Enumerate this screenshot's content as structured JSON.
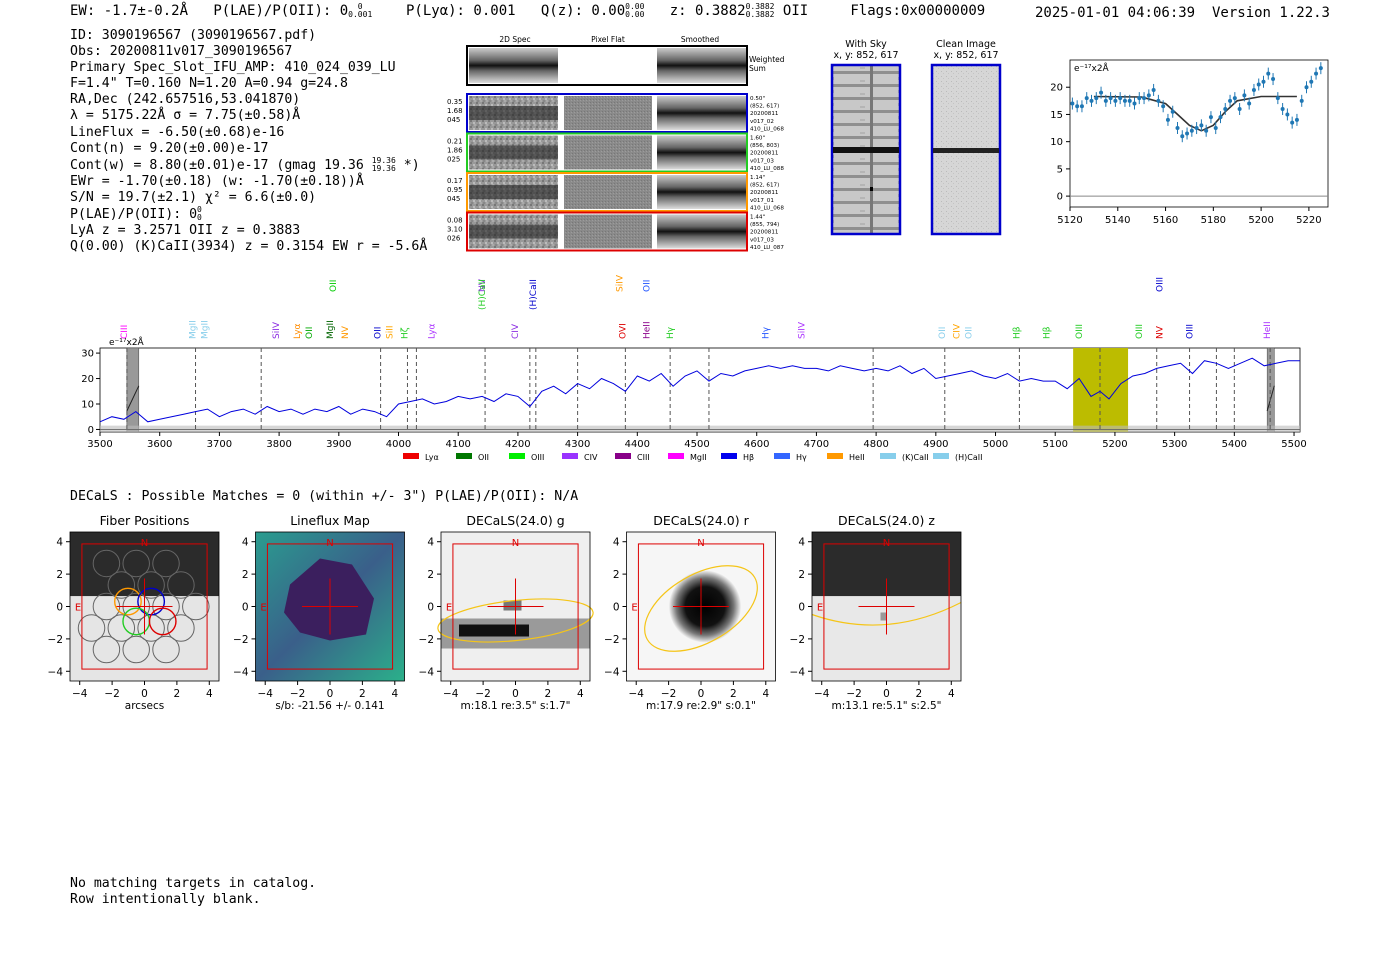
{
  "header": {
    "ew": "EW: -1.7±-0.2Å",
    "plae_label": "P(LAE)/P(OII): 0",
    "plae_sup": "0",
    "plae_sub": "0.001",
    "plya": "P(Lyα): 0.001",
    "qz_label": "Q(z): 0.00",
    "qz_sup": "0.00",
    "qz_sub": "0.00",
    "z_label": "z: 0.3882",
    "z_sup": "0.3882",
    "z_sub": "0.3882",
    "z_line": "OII",
    "flags": "Flags:0x00000009",
    "timestamp": "2025-01-01 04:06:39",
    "version": "Version 1.22.3"
  },
  "info": {
    "lines": [
      "ID: 3090196567 (3090196567.pdf)",
      "Obs: 20200811v017_3090196567",
      "Primary Spec_Slot_IFU_AMP: 410_024_039_LU",
      "F=1.4\"  T=0.160  N=1.20  A=0.94  g=24.8",
      "RA,Dec (242.657516,53.041870)",
      "λ = 5175.22Å  σ = 7.75(±0.58)Å",
      "LineFlux = -6.50(±0.68)e-16",
      "Cont(n) = 9.20(±0.00)e-17"
    ],
    "contw": "Cont(w) = 8.80(±0.01)e-17 (gmag 19.36",
    "contw_sup": "19.36",
    "contw_sub": "19.36",
    "contw_end": "*)",
    "lines2": [
      "EWr = -1.70(±0.18) (w: -1.70(±0.18))Å",
      "S/N = 19.7(±2.1)  χ² = 6.6(±0.0)"
    ],
    "plae2": "P(LAE)/P(OII): 0",
    "plae2_sup": "0",
    "plae2_sub": "0",
    "lines3": [
      "LyA z = 3.2571  OII z = 0.3883",
      "Q(0.00) (K)CaII(3934) z = 0.3154  EW r = -5.6Å"
    ]
  },
  "spec2d": {
    "col_headers": [
      "2D Spec",
      "Pixel Flat",
      "Smoothed"
    ],
    "weighted_label": [
      "Weighted",
      "Sum"
    ],
    "rows": [
      {
        "left": [
          "0.35",
          "1.68",
          "045"
        ],
        "right": [
          "0.50\"",
          "(852, 617)",
          "20200811",
          "v017_02",
          "410_LU_068"
        ],
        "color": "#0000cc"
      },
      {
        "left": [
          "0.21",
          "1.86",
          "025"
        ],
        "right": [
          "1.60\"",
          "(856, 803)",
          "20200811",
          "v017_03",
          "410_LU_088"
        ],
        "color": "#22cc22"
      },
      {
        "left": [
          "0.17",
          "0.95",
          "045"
        ],
        "right": [
          "1.14\"",
          "(852, 617)",
          "20200811",
          "v017_01",
          "410_LU_068"
        ],
        "color": "#ff9900"
      },
      {
        "left": [
          "0.08",
          "3.10",
          "026"
        ],
        "right": [
          "1.44\"",
          "(855, 794)",
          "20200811",
          "v017_03",
          "410_LU_087"
        ],
        "color": "#dd0000"
      }
    ]
  },
  "cutouts": {
    "with_sky": [
      "With Sky",
      "x, y: 852, 617"
    ],
    "clean": [
      "Clean Image",
      "x, y: 852, 617"
    ]
  },
  "zoom_chart": {
    "type": "scatter",
    "ylabel": "e⁻¹⁷x2Å",
    "xlim": [
      5120,
      5228
    ],
    "ylim": [
      -2,
      25
    ],
    "xticks": [
      5120,
      5140,
      5160,
      5180,
      5200,
      5220
    ],
    "yticks": [
      0,
      5,
      10,
      15,
      20
    ],
    "points_x": [
      5121,
      5123,
      5125,
      5127,
      5129,
      5131,
      5133,
      5135,
      5137,
      5139,
      5141,
      5143,
      5145,
      5147,
      5149,
      5151,
      5153,
      5155,
      5157,
      5159,
      5161,
      5163,
      5165,
      5167,
      5169,
      5171,
      5173,
      5175,
      5177,
      5179,
      5181,
      5183,
      5185,
      5187,
      5189,
      5191,
      5193,
      5195,
      5197,
      5199,
      5201,
      5203,
      5205,
      5207,
      5209,
      5211,
      5213,
      5215,
      5217,
      5219,
      5221,
      5223,
      5225
    ],
    "points_y": [
      17,
      16.5,
      16.5,
      18,
      17.5,
      18,
      19,
      17.5,
      18,
      17.5,
      18,
      17.5,
      17.5,
      17,
      18,
      18,
      18.5,
      19.5,
      17.5,
      16.5,
      14,
      15.5,
      12.5,
      11,
      11.5,
      12,
      12.5,
      13,
      12,
      14.5,
      12.5,
      14.5,
      16,
      17.5,
      18,
      16,
      18.5,
      17,
      19.5,
      20.5,
      21,
      22.5,
      21.5,
      18,
      16,
      15,
      13.5,
      14,
      17.5,
      20,
      21,
      22.5,
      23.5
    ],
    "model_x": [
      5130,
      5150,
      5160,
      5165,
      5170,
      5175,
      5180,
      5185,
      5190,
      5200,
      5215
    ],
    "model_y": [
      18.3,
      18.2,
      17,
      15,
      13,
      12,
      13,
      15.5,
      17.5,
      18.3,
      18.3
    ]
  },
  "spectrum_chart": {
    "type": "line",
    "ylabel": "e⁻¹⁷x2Å",
    "xlim": [
      3500,
      5510
    ],
    "ylim": [
      -1,
      32
    ],
    "xticks": [
      3500,
      3600,
      3700,
      3800,
      3900,
      4000,
      4100,
      4200,
      4300,
      4400,
      4500,
      4600,
      4700,
      4800,
      4900,
      5000,
      5100,
      5200,
      5300,
      5400,
      5500
    ],
    "yticks": [
      0,
      10,
      20,
      30
    ],
    "highlight_range": [
      5130,
      5222
    ],
    "highlight_color": "#bcbc00",
    "gray_bands": [
      [
        3545,
        3565
      ],
      [
        5455,
        5467
      ]
    ],
    "dashed_lines": [
      3545,
      3660,
      3770,
      3970,
      4015,
      4030,
      4145,
      4220,
      4230,
      4300,
      4380,
      4455,
      4520,
      4795,
      4915,
      5040,
      5175,
      5270,
      5325,
      5370,
      5400,
      5460
    ],
    "series_x": [
      3500,
      3520,
      3540,
      3560,
      3580,
      3600,
      3620,
      3640,
      3660,
      3680,
      3700,
      3720,
      3740,
      3760,
      3780,
      3800,
      3820,
      3840,
      3860,
      3880,
      3900,
      3920,
      3940,
      3960,
      3980,
      4000,
      4020,
      4040,
      4060,
      4080,
      4100,
      4120,
      4140,
      4160,
      4180,
      4200,
      4220,
      4240,
      4260,
      4280,
      4300,
      4320,
      4340,
      4360,
      4380,
      4400,
      4420,
      4440,
      4460,
      4480,
      4500,
      4520,
      4540,
      4560,
      4580,
      4600,
      4620,
      4640,
      4660,
      4680,
      4700,
      4720,
      4740,
      4760,
      4780,
      4800,
      4820,
      4840,
      4860,
      4880,
      4900,
      4920,
      4940,
      4960,
      4980,
      5000,
      5020,
      5040,
      5060,
      5080,
      5100,
      5120,
      5140,
      5160,
      5175,
      5190,
      5210,
      5230,
      5250,
      5270,
      5290,
      5310,
      5330,
      5350,
      5370,
      5390,
      5410,
      5430,
      5450,
      5470,
      5490,
      5510
    ],
    "series_y": [
      3,
      5,
      4,
      7,
      3,
      4,
      5,
      6,
      7,
      8,
      5,
      7,
      8,
      6,
      9,
      7,
      8,
      6,
      8,
      7,
      9,
      6,
      8,
      7,
      5,
      10,
      11,
      12,
      10,
      11,
      13,
      12,
      13,
      11,
      14,
      13,
      9,
      15,
      17,
      14,
      18,
      16,
      20,
      18,
      15,
      21,
      19,
      22,
      17,
      21,
      23,
      19,
      22,
      21,
      23,
      24,
      25,
      24,
      25,
      24,
      24,
      23,
      25,
      24,
      23,
      24,
      23,
      25,
      22,
      24,
      20,
      21,
      22,
      23,
      21,
      20,
      22,
      19,
      20,
      19,
      19,
      16,
      20,
      13,
      15,
      12,
      18,
      21,
      22,
      24,
      25,
      26,
      22,
      27,
      26,
      24,
      26,
      28,
      25,
      26,
      27,
      27
    ],
    "emission_lines": [
      {
        "label": "CIII",
        "x": 3545,
        "color": "#ff00ff",
        "row": 0
      },
      {
        "label": "MgII",
        "x": 3660,
        "color": "#87ceeb",
        "row": 0
      },
      {
        "label": "MgII",
        "x": 3680,
        "color": "#87ceeb",
        "row": 0
      },
      {
        "label": "SiIV",
        "x": 3800,
        "color": "#8a2be2",
        "row": 0
      },
      {
        "label": "Lyα",
        "x": 3835,
        "color": "#ff8c00",
        "row": 0
      },
      {
        "label": "OII",
        "x": 3855,
        "color": "#00aa00",
        "row": 0
      },
      {
        "label": "MgII",
        "x": 3890,
        "color": "#006400",
        "row": 0
      },
      {
        "label": "OII",
        "x": 3895,
        "color": "#00cc00",
        "row": 2
      },
      {
        "label": "NV",
        "x": 3915,
        "color": "#ff9900",
        "row": 0
      },
      {
        "label": "OII",
        "x": 3970,
        "color": "#0000cc",
        "row": 0
      },
      {
        "label": "SiII",
        "x": 3990,
        "color": "#ffa500",
        "row": 0
      },
      {
        "label": "Hζ",
        "x": 4015,
        "color": "#22cc22",
        "row": 0
      },
      {
        "label": "Lyα",
        "x": 4060,
        "color": "#aa33ff",
        "row": 0
      },
      {
        "label": "NV",
        "x": 4145,
        "color": "#8a2be2",
        "row": 2
      },
      {
        "label": "(H)CaII",
        "x": 4145,
        "color": "#22cc22",
        "row": 1
      },
      {
        "label": "CIV",
        "x": 4200,
        "color": "#8a2be2",
        "row": 0
      },
      {
        "label": "(H)CaII",
        "x": 4230,
        "color": "#0000cc",
        "row": 1
      },
      {
        "label": "SiIV",
        "x": 4375,
        "color": "#ff9900",
        "row": 2
      },
      {
        "label": "OVI",
        "x": 4380,
        "color": "#dd0000",
        "row": 0
      },
      {
        "label": "OII",
        "x": 4420,
        "color": "#2255ff",
        "row": 2
      },
      {
        "label": "HeII",
        "x": 4420,
        "color": "#8b008b",
        "row": 0
      },
      {
        "label": "Hγ",
        "x": 4460,
        "color": "#22cc22",
        "row": 0
      },
      {
        "label": "Hγ",
        "x": 4620,
        "color": "#2255ff",
        "row": 0
      },
      {
        "label": "SiIV",
        "x": 4680,
        "color": "#aa33ff",
        "row": 0
      },
      {
        "label": "OII",
        "x": 4915,
        "color": "#87ceeb",
        "row": 0
      },
      {
        "label": "CIV",
        "x": 4940,
        "color": "#ffa500",
        "row": 0
      },
      {
        "label": "OII",
        "x": 4960,
        "color": "#87ceeb",
        "row": 0
      },
      {
        "label": "Hβ",
        "x": 5040,
        "color": "#22cc22",
        "row": 0
      },
      {
        "label": "Hβ",
        "x": 5090,
        "color": "#22cc22",
        "row": 0
      },
      {
        "label": "OIII",
        "x": 5145,
        "color": "#22cc22",
        "row": 0
      },
      {
        "label": "OIII",
        "x": 5245,
        "color": "#22cc22",
        "row": 0
      },
      {
        "label": "NV",
        "x": 5280,
        "color": "#dd0000",
        "row": 0
      },
      {
        "label": "OIII",
        "x": 5280,
        "color": "#0000cc",
        "row": 2
      },
      {
        "label": "OIII",
        "x": 5330,
        "color": "#0000cc",
        "row": 0
      },
      {
        "label": "HeII",
        "x": 5460,
        "color": "#aa33ff",
        "row": 0
      }
    ],
    "legend": [
      {
        "label": "Lyα",
        "color": "#ee0000"
      },
      {
        "label": "OII",
        "color": "#007700"
      },
      {
        "label": "OIII",
        "color": "#00ee00"
      },
      {
        "label": "CIV",
        "color": "#9933ff"
      },
      {
        "label": "CIII",
        "color": "#880088"
      },
      {
        "label": "MgII",
        "color": "#ff00ff"
      },
      {
        "label": "Hβ",
        "color": "#0000ee"
      },
      {
        "label": "Hγ",
        "color": "#3366ff"
      },
      {
        "label": "HeII",
        "color": "#ff9900"
      },
      {
        "label": "(K)CaII",
        "color": "#87ceeb"
      },
      {
        "label": "(H)CaII",
        "color": "#87ceeb"
      }
    ]
  },
  "decals": {
    "matches_line": "DECaLS : Possible Matches = 0 (within +/- 3\")  P(LAE)/P(OII): N/A",
    "panels": [
      {
        "title": "Fiber Positions",
        "caption": "arcsecs"
      },
      {
        "title": "Lineflux Map",
        "caption": "s/b: -21.56 +/- 0.141"
      },
      {
        "title": "DECaLS(24.0) g",
        "caption": "m:18.1  re:3.5\"  s:1.7\""
      },
      {
        "title": "DECaLS(24.0) r",
        "caption": "m:17.9  re:2.9\"  s:0.1\""
      },
      {
        "title": "DECaLS(24.0) z",
        "caption": "m:13.1  re:5.1\"  s:2.5\""
      }
    ],
    "axis_ticks": [
      "4",
      "2",
      "0",
      "−2",
      "−4"
    ],
    "x_ticks": [
      "−4",
      "−2",
      "0",
      "2",
      "4"
    ],
    "compass_n": "N",
    "compass_e": "E"
  },
  "footer": {
    "lines": [
      "No matching targets in catalog.",
      "Row intentionally blank."
    ]
  }
}
